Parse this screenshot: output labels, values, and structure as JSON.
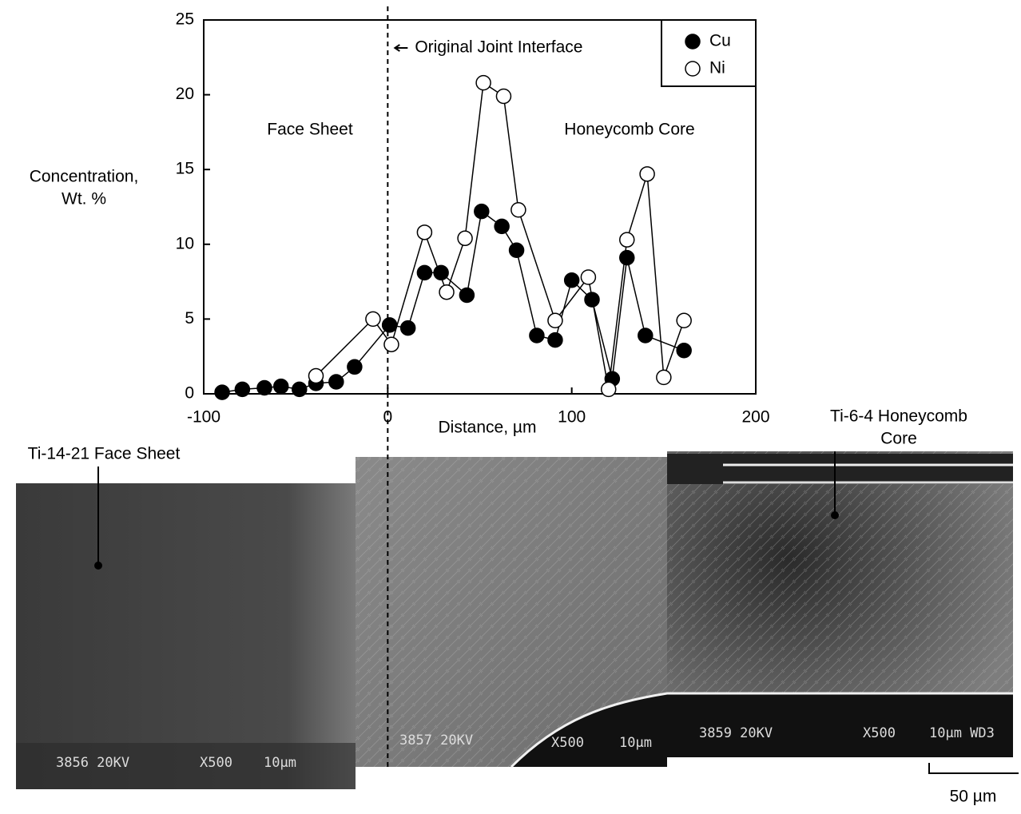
{
  "chart_data": {
    "type": "line",
    "ylabel": [
      "Concentration,",
      "Wt. %"
    ],
    "xlabel": "Distance, µm",
    "xlim": [
      -100,
      200
    ],
    "xticks": [
      -100,
      0,
      100,
      200
    ],
    "ylim": [
      0,
      25
    ],
    "yticks": [
      0,
      5,
      10,
      15,
      20,
      25
    ],
    "legend": "upper right",
    "reference_line": {
      "x": 0,
      "style": "dashed",
      "label": "Original Joint Interface"
    },
    "annotations": [
      "Face Sheet",
      "Honeycomb Core"
    ],
    "series": [
      {
        "name": "Cu",
        "color": "#000000",
        "marker": "filled",
        "x": [
          -90,
          -79,
          -67,
          -58,
          -48,
          -39,
          -28,
          -18,
          1,
          11,
          20,
          29,
          43,
          51,
          62,
          70,
          81,
          91,
          100,
          111,
          122,
          130,
          140,
          161
        ],
        "values": [
          0.1,
          0.3,
          0.4,
          0.5,
          0.3,
          0.7,
          0.8,
          1.8,
          4.6,
          4.4,
          8.1,
          8.1,
          6.6,
          12.2,
          11.2,
          9.6,
          3.9,
          3.6,
          7.6,
          6.3,
          1.0,
          9.1,
          3.9,
          2.9
        ]
      },
      {
        "name": "Ni",
        "color": "#ffffff",
        "marker": "open",
        "x": [
          -39,
          -8,
          2,
          20,
          32,
          42,
          52,
          63,
          71,
          91,
          109,
          120,
          130,
          141,
          150,
          161
        ],
        "values": [
          1.2,
          5.0,
          3.3,
          10.8,
          6.8,
          10.4,
          20.8,
          19.9,
          12.3,
          4.9,
          7.8,
          0.3,
          10.3,
          14.7,
          1.1,
          4.9
        ]
      }
    ]
  },
  "micrograph": {
    "labels": [
      [
        "Ti-14-21 Face Sheet"
      ],
      [
        "Ti-6-4 Honeycomb",
        "Core"
      ]
    ],
    "scale_bar": "50 µm",
    "sem_text": [
      "3856 20KV",
      "X500",
      "10µm",
      "3857 20KV",
      "X500",
      "10µm",
      "3859 20KV",
      "X500",
      "10µm WD3"
    ]
  }
}
